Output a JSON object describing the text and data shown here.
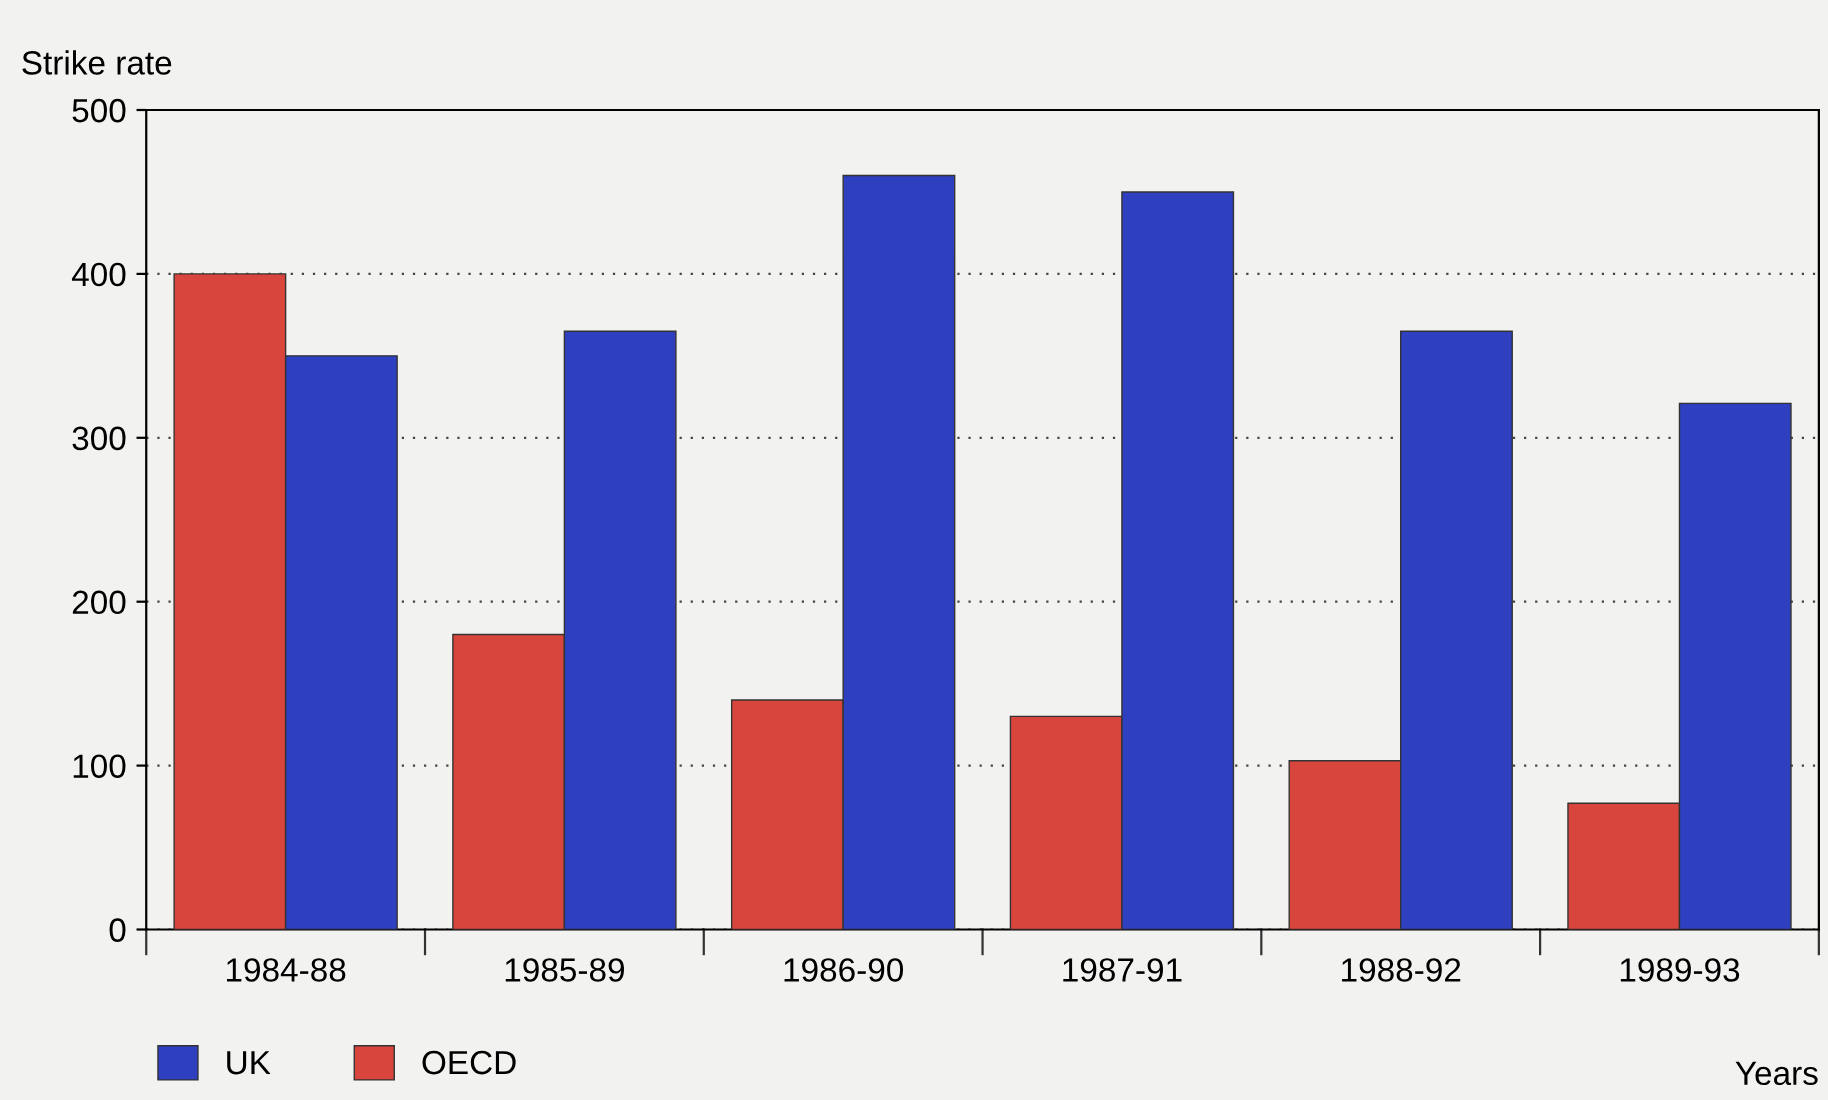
{
  "chart_data": {
    "type": "bar",
    "ylabel": "Strike rate",
    "xlabel": "Years",
    "categories": [
      "1984-88",
      "1985-89",
      "1986-90",
      "1987-91",
      "1988-92",
      "1989-93"
    ],
    "series": [
      {
        "name": "OECD",
        "color": "#d8453c",
        "values": [
          400,
          180,
          140,
          130,
          103,
          77
        ]
      },
      {
        "name": "UK",
        "color": "#2e3fc0",
        "values": [
          350,
          365,
          460,
          450,
          365,
          321
        ]
      }
    ],
    "ylim": [
      0,
      500
    ],
    "yticks": [
      0,
      100,
      200,
      300,
      400,
      500
    ],
    "grid": "y",
    "legend": "bottom"
  }
}
